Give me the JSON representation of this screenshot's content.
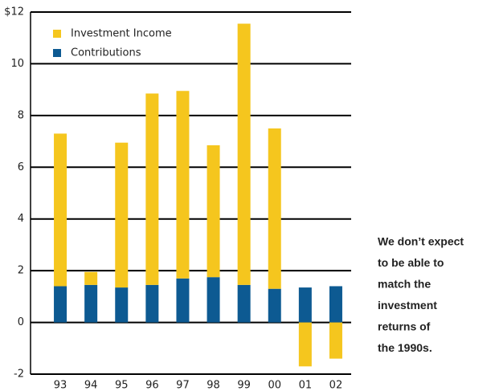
{
  "chart_data": {
    "type": "stacked_bar",
    "categories": [
      "93",
      "94",
      "95",
      "96",
      "97",
      "98",
      "99",
      "00",
      "01",
      "02"
    ],
    "series": [
      {
        "name": "Investment Income",
        "color": "#f5c61e",
        "values": [
          5.9,
          0.5,
          5.6,
          7.4,
          7.25,
          5.1,
          10.1,
          6.2,
          -1.7,
          -1.4
        ]
      },
      {
        "name": "Contributions",
        "color": "#0d5a92",
        "values": [
          1.4,
          1.45,
          1.35,
          1.45,
          1.7,
          1.75,
          1.45,
          1.3,
          1.35,
          1.4
        ]
      }
    ],
    "ylim": [
      -2,
      12
    ],
    "yticks": [
      -2,
      0,
      2,
      4,
      6,
      8,
      10,
      {
        "value": 12,
        "label": "$12"
      }
    ],
    "grid": true,
    "legend": "top-left",
    "annotation": [
      "We don’t expect",
      "to be able to",
      "match the",
      "investment",
      "returns of",
      "the 1990s."
    ]
  }
}
